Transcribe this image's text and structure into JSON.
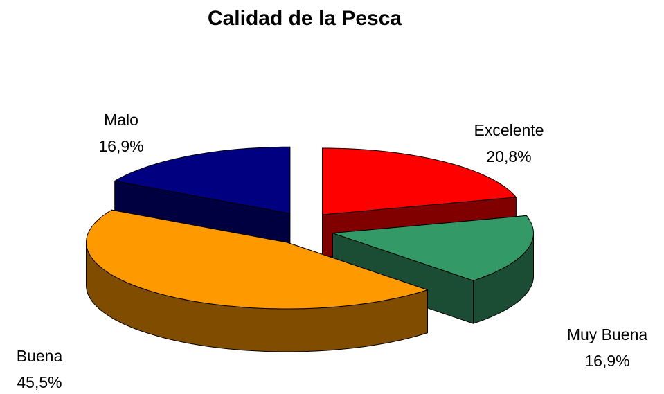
{
  "chart_data": {
    "type": "pie",
    "title": "Calidad de la Pesca",
    "categories": [
      "Excelente",
      "Muy Buena",
      "Buena",
      "Malo"
    ],
    "values": [
      20.8,
      16.9,
      45.5,
      16.9
    ],
    "value_labels": [
      "20,8%",
      "16,9%",
      "45,5%",
      "16,9%"
    ],
    "colors": [
      "#ff0000",
      "#339966",
      "#ff9900",
      "#000080"
    ],
    "three_d": true,
    "exploded": true
  }
}
